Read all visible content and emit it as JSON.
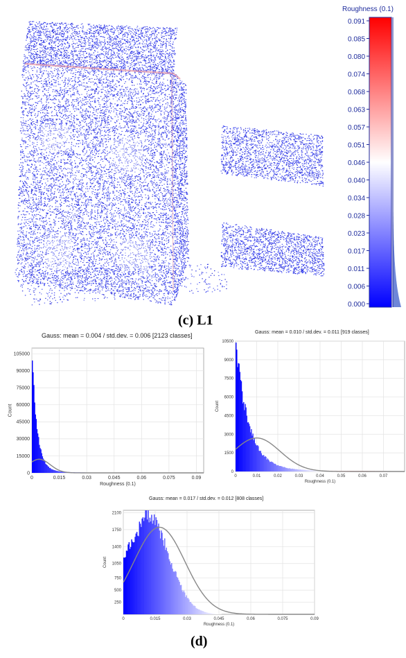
{
  "panel_c": {
    "caption": "(c) L1",
    "description_colors": {
      "points": "#2d36f0",
      "edge": "#e89aa6"
    }
  },
  "colorbar": {
    "title": "Roughness (0.1)",
    "ticks": [
      "0.091",
      "0.085",
      "0.080",
      "0.074",
      "0.068",
      "0.063",
      "0.057",
      "0.051",
      "0.046",
      "0.040",
      "0.034",
      "0.028",
      "0.023",
      "0.017",
      "0.011",
      "0.006",
      "0.000"
    ],
    "colors": {
      "low": "#0000ff",
      "mid": "#ffffff",
      "high": "#ff0000",
      "label": "#1c2a9c"
    }
  },
  "panel_d": {
    "caption": "(d)"
  },
  "chart_data": [
    {
      "type": "histogram",
      "title": "Gauss: mean = 0.004 / std.dev. = 0.006 [2123 classes]",
      "xlabel": "Roughness (0.1)",
      "ylabel": "Count",
      "xlim": [
        0,
        0.094
      ],
      "ylim": [
        0,
        110000
      ],
      "x_ticks": [
        "0",
        "0.015",
        "0.03",
        "0.045",
        "0.06",
        "0.075",
        "0.09"
      ],
      "y_ticks": [
        "0",
        "15000",
        "30000",
        "45000",
        "60000",
        "75000",
        "90000",
        "105000"
      ],
      "gauss": {
        "mean": 0.004,
        "std": 0.006,
        "peak": 12000
      },
      "shape": {
        "peak": 105000,
        "decay": 0.0028
      },
      "grid": true
    },
    {
      "type": "histogram",
      "title": "Gauss: mean = 0.010 / std.dev. = 0.011 [919 classes]",
      "xlabel": "Roughness (0.1)",
      "ylabel": "Count",
      "xlim": [
        0,
        0.08
      ],
      "ylim": [
        0,
        10500
      ],
      "x_ticks": [
        "0",
        "0.01",
        "0.02",
        "0.03",
        "0.04",
        "0.05",
        "0.06",
        "0.07"
      ],
      "y_ticks": [
        "0",
        "1500",
        "3000",
        "4500",
        "6000",
        "7500",
        "9000",
        "10500"
      ],
      "gauss": {
        "mean": 0.01,
        "std": 0.011,
        "peak": 2700
      },
      "shape": {
        "peak": 10500,
        "decay": 0.006
      },
      "grid": true
    },
    {
      "type": "histogram",
      "title": "Gauss: mean = 0.017 / std.dev. = 0.012 [808 classes]",
      "xlabel": "Roughness (0.1)",
      "ylabel": "Count",
      "xlim": [
        0,
        0.09
      ],
      "ylim": [
        0,
        2150
      ],
      "x_ticks": [
        "0",
        "0.015",
        "0.03",
        "0.045",
        "0.06",
        "0.075",
        "0.09"
      ],
      "y_ticks": [
        "250",
        "500",
        "750",
        "1050",
        "1400",
        "1750",
        "2100"
      ],
      "gauss": {
        "mean": 0.017,
        "std": 0.012,
        "peak": 1800
      },
      "shape": {
        "peak": 2100,
        "mode": 0.011,
        "spread": 0.01
      },
      "grid": true
    }
  ]
}
